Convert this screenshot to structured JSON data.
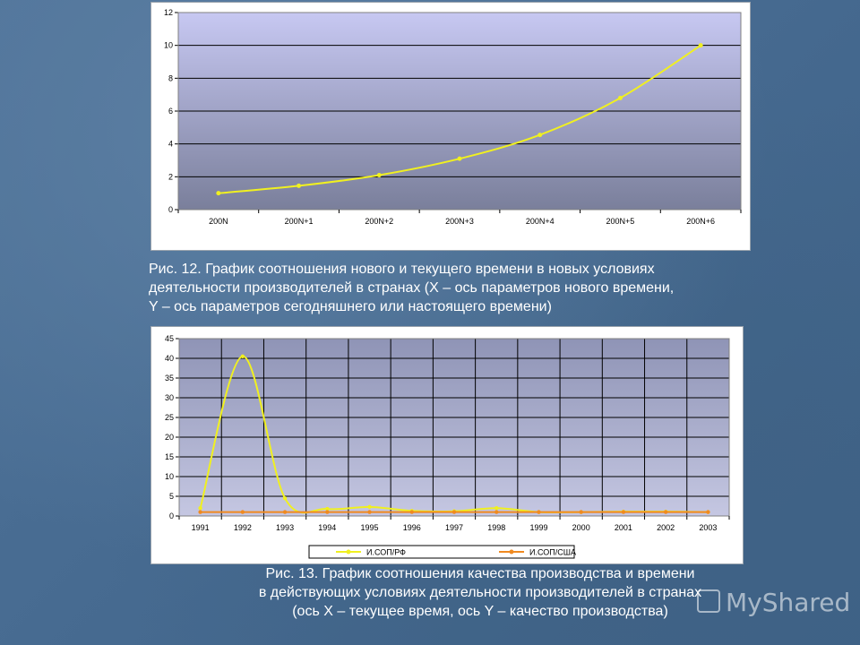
{
  "chart_data": [
    {
      "type": "line",
      "categories": [
        "200N",
        "200N+1",
        "200N+2",
        "200N+3",
        "200N+4",
        "200N+5",
        "200N+6"
      ],
      "series": [
        {
          "name": "",
          "values": [
            1.0,
            1.45,
            2.1,
            3.1,
            4.55,
            6.8,
            10.0
          ],
          "color": "#f0f020"
        }
      ],
      "ylim": [
        0,
        12
      ],
      "yticks": [
        "0",
        "2",
        "4",
        "6",
        "8",
        "10",
        "12"
      ],
      "grid": "horizontal",
      "legend": "none"
    },
    {
      "type": "line",
      "categories": [
        "1991",
        "1992",
        "1993",
        "1994",
        "1995",
        "1996",
        "1997",
        "1998",
        "1999",
        "2000",
        "2001",
        "2002",
        "2003"
      ],
      "series": [
        {
          "name": "И.СОП/РФ",
          "values": [
            2,
            40.5,
            4.5,
            1.8,
            2.3,
            1.3,
            1.2,
            2.0,
            1.0,
            1.0,
            1.1,
            1.1,
            1.0
          ],
          "color": "#f0f020"
        },
        {
          "name": "И.СОП/США",
          "values": [
            1,
            1,
            1,
            1,
            1,
            1,
            1,
            1,
            1,
            1,
            1,
            1,
            1
          ],
          "color": "#f08a20"
        }
      ],
      "ylim": [
        0,
        45
      ],
      "yticks": [
        "0",
        "5",
        "10",
        "15",
        "20",
        "25",
        "30",
        "35",
        "40",
        "45"
      ],
      "grid": "both",
      "legend": "bottom"
    }
  ],
  "captions": {
    "fig12": [
      "Рис. 12. График соотношения нового и текущего времени в новых условиях",
      "деятельности производителей в странах (X – ось параметров нового времени,",
      "Y – ось параметров сегодняшнего или настоящего времени)"
    ],
    "fig13": [
      "Рис. 13. График соотношения качества производства и времени",
      "в действующих условиях деятельности производителей в странах",
      "(ось X – текущее время, ось Y – качество производства)"
    ]
  },
  "watermark": "MyShared"
}
